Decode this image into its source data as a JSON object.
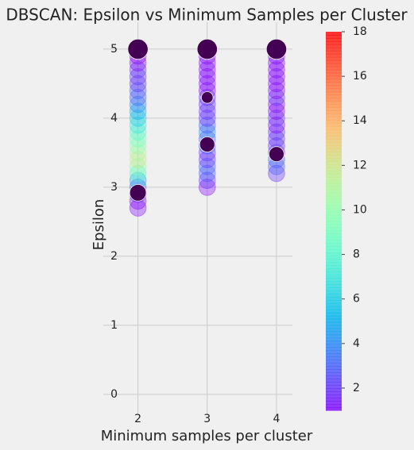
{
  "chart_data": {
    "type": "scatter",
    "title": "DBSCAN: Epsilon vs Minimum Samples per Cluster",
    "x_label": "Minimum samples per cluster",
    "y_label": "Epsilon",
    "xlim": [
      1.5,
      4.23
    ],
    "ylim": [
      -0.3,
      5.39
    ],
    "xticks": [
      2,
      3,
      4
    ],
    "yticks": [
      0,
      1,
      2,
      3,
      4,
      5
    ],
    "grid": true,
    "colormap": "rainbow",
    "alpha": 0.35,
    "clim": [
      1,
      18
    ],
    "cticks": [
      2,
      4,
      6,
      8,
      10,
      12,
      14,
      16,
      18
    ],
    "series": [
      {
        "x": [
          2,
          2,
          2,
          2,
          2,
          2,
          2,
          2,
          2,
          2,
          2,
          2,
          2,
          2,
          2,
          2,
          2,
          2,
          2,
          2,
          2,
          2,
          2,
          2,
          3,
          3,
          3,
          3,
          3,
          3,
          3,
          3,
          3,
          3,
          3,
          3,
          3,
          3,
          3,
          3,
          3,
          3,
          3,
          3,
          3,
          4,
          4,
          4,
          4,
          4,
          4,
          4,
          4,
          4,
          4,
          4,
          4,
          4,
          4,
          4,
          4,
          4,
          4,
          4
        ],
        "values": [
          2.7,
          2.8,
          2.9,
          3.0,
          3.1,
          3.2,
          3.3,
          3.4,
          3.5,
          3.6,
          3.7,
          3.8,
          3.9,
          4.0,
          4.1,
          4.2,
          4.3,
          4.4,
          4.5,
          4.6,
          4.7,
          4.8,
          4.9,
          5.0,
          3.0,
          3.1,
          3.2,
          3.3,
          3.4,
          3.5,
          3.6,
          3.7,
          3.8,
          3.9,
          4.0,
          4.1,
          4.2,
          4.3,
          4.4,
          4.5,
          4.6,
          4.7,
          4.8,
          4.9,
          5.0,
          3.2,
          3.3,
          3.4,
          3.5,
          3.6,
          3.7,
          3.8,
          3.9,
          4.0,
          4.1,
          4.2,
          4.3,
          4.4,
          4.5,
          4.6,
          4.7,
          4.8,
          4.9,
          5.0
        ],
        "sizes": [
          300,
          300,
          300,
          300,
          300,
          300,
          300,
          300,
          300,
          300,
          300,
          300,
          300,
          300,
          300,
          300,
          300,
          300,
          300,
          300,
          300,
          300,
          300,
          300,
          300,
          300,
          300,
          300,
          300,
          300,
          300,
          300,
          300,
          300,
          300,
          300,
          300,
          300,
          300,
          300,
          300,
          300,
          300,
          300,
          300,
          300,
          300,
          300,
          300,
          300,
          300,
          300,
          300,
          300,
          300,
          300,
          300,
          300,
          300,
          300,
          300,
          300,
          300,
          300
        ],
        "clusters": [
          1,
          1,
          2,
          3,
          5,
          8,
          10,
          12,
          11,
          10,
          9,
          8,
          7,
          6,
          5,
          4,
          3,
          3,
          2,
          2,
          2,
          1,
          1,
          1,
          1,
          2,
          3,
          3,
          2,
          2,
          3,
          3,
          4,
          3,
          2,
          2,
          2,
          2,
          1,
          1,
          1,
          1,
          1,
          1,
          1,
          2,
          3,
          3,
          2,
          2,
          2,
          2,
          1,
          2,
          1,
          1,
          2,
          1,
          1,
          1,
          1,
          1,
          1,
          1
        ]
      },
      {
        "color": "#440154",
        "x": [
          2,
          2,
          3,
          3,
          3,
          4,
          4
        ],
        "values": [
          5.0,
          2.92,
          5.0,
          3.62,
          4.3,
          5.0,
          3.48
        ],
        "sizes": [
          450,
          300,
          450,
          250,
          150,
          450,
          250
        ]
      }
    ]
  }
}
